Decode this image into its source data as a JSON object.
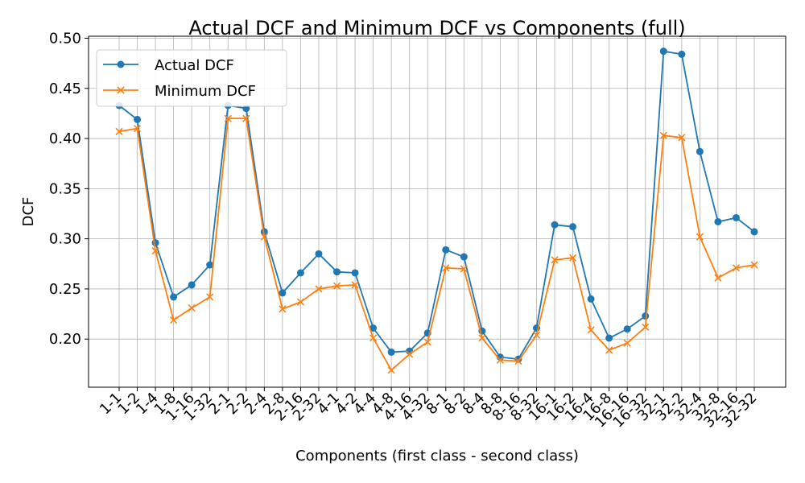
{
  "chart_data": {
    "type": "line",
    "title": "Actual DCF and Minimum DCF vs Components (full)",
    "xlabel": "Components (first class - second class)",
    "ylabel": "DCF",
    "ylim": [
      0.152,
      0.502
    ],
    "yticks": [
      0.2,
      0.25,
      0.3,
      0.35,
      0.4,
      0.45,
      0.5
    ],
    "ytick_labels": [
      "0.20",
      "0.25",
      "0.30",
      "0.35",
      "0.40",
      "0.45",
      "0.50"
    ],
    "grid": true,
    "legend_position": "top-left",
    "categories": [
      "1-1",
      "1-2",
      "1-4",
      "1-8",
      "1-16",
      "1-32",
      "2-1",
      "2-2",
      "2-4",
      "2-8",
      "2-16",
      "2-32",
      "4-1",
      "4-2",
      "4-4",
      "4-8",
      "4-16",
      "4-32",
      "8-1",
      "8-2",
      "8-4",
      "8-8",
      "8-16",
      "8-32",
      "16-1",
      "16-2",
      "16-4",
      "16-8",
      "16-16",
      "16-32",
      "32-1",
      "32-2",
      "32-4",
      "32-8",
      "32-16",
      "32-32"
    ],
    "series": [
      {
        "name": "Actual DCF",
        "color": "#1f77b4",
        "marker": "circle",
        "values": [
          0.433,
          0.419,
          0.296,
          0.242,
          0.254,
          0.274,
          0.433,
          0.43,
          0.307,
          0.246,
          0.266,
          0.285,
          0.267,
          0.266,
          0.211,
          0.187,
          0.188,
          0.206,
          0.289,
          0.282,
          0.208,
          0.182,
          0.18,
          0.211,
          0.314,
          0.312,
          0.24,
          0.201,
          0.21,
          0.223,
          0.487,
          0.484,
          0.387,
          0.317,
          0.321,
          0.307
        ]
      },
      {
        "name": "Minimum DCF",
        "color": "#ff7f0e",
        "marker": "x",
        "values": [
          0.407,
          0.41,
          0.288,
          0.219,
          0.231,
          0.242,
          0.42,
          0.42,
          0.302,
          0.23,
          0.237,
          0.25,
          0.253,
          0.254,
          0.201,
          0.169,
          0.185,
          0.197,
          0.271,
          0.27,
          0.201,
          0.179,
          0.178,
          0.204,
          0.279,
          0.281,
          0.209,
          0.189,
          0.196,
          0.212,
          0.403,
          0.401,
          0.302,
          0.261,
          0.271,
          0.274
        ]
      }
    ]
  }
}
